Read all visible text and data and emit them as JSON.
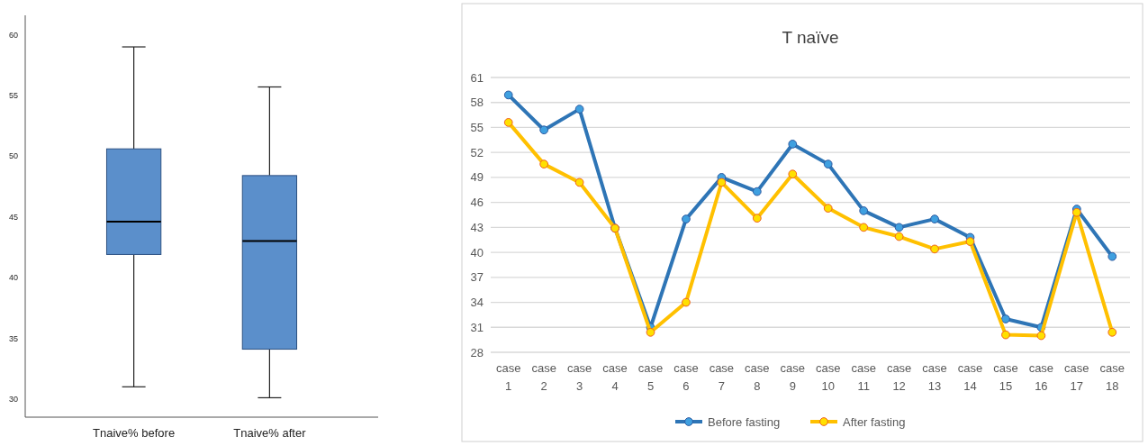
{
  "chart_data": [
    {
      "type": "box",
      "categories": [
        "Tnaive% before",
        "Tnaive% after"
      ],
      "color": "#5b8fcb",
      "ylim": [
        28.5,
        61.6
      ],
      "yticks": [
        30,
        35,
        40,
        45,
        50,
        55,
        60
      ],
      "boxes": [
        {
          "low": 31,
          "q1": 41.9,
          "median": 44.6,
          "q3": 50.6,
          "high": 59
        },
        {
          "low": 30.1,
          "q1": 34.1,
          "median": 43,
          "q3": 48.4,
          "high": 55.7
        }
      ]
    },
    {
      "type": "line",
      "title": "T naïve",
      "categories": [
        "case 1",
        "case 2",
        "case 3",
        "case 4",
        "case 5",
        "case 6",
        "case 7",
        "case 8",
        "case 9",
        "case 10",
        "case 11",
        "case 12",
        "case 13",
        "case 14",
        "case 15",
        "case 16",
        "case 17",
        "case 18"
      ],
      "ylim": [
        28,
        61
      ],
      "yticks": [
        28,
        31,
        34,
        37,
        40,
        43,
        46,
        49,
        52,
        55,
        58,
        61
      ],
      "grid": "y",
      "legend": "bottom",
      "marker": "circle",
      "series": [
        {
          "name": "Before fasting",
          "color": "#2e75b6",
          "values": [
            58.9,
            54.7,
            57.2,
            42.9,
            31,
            44,
            49,
            47.3,
            53,
            50.6,
            45,
            43,
            44,
            41.8,
            32,
            31,
            45.2,
            39.5
          ]
        },
        {
          "name": "After fasting",
          "color": "#ffc000",
          "values": [
            55.6,
            50.6,
            48.4,
            42.9,
            30.4,
            34,
            48.4,
            44.1,
            49.4,
            45.3,
            43,
            41.9,
            40.4,
            41.3,
            30.1,
            30,
            44.8,
            30.4
          ]
        }
      ]
    }
  ]
}
